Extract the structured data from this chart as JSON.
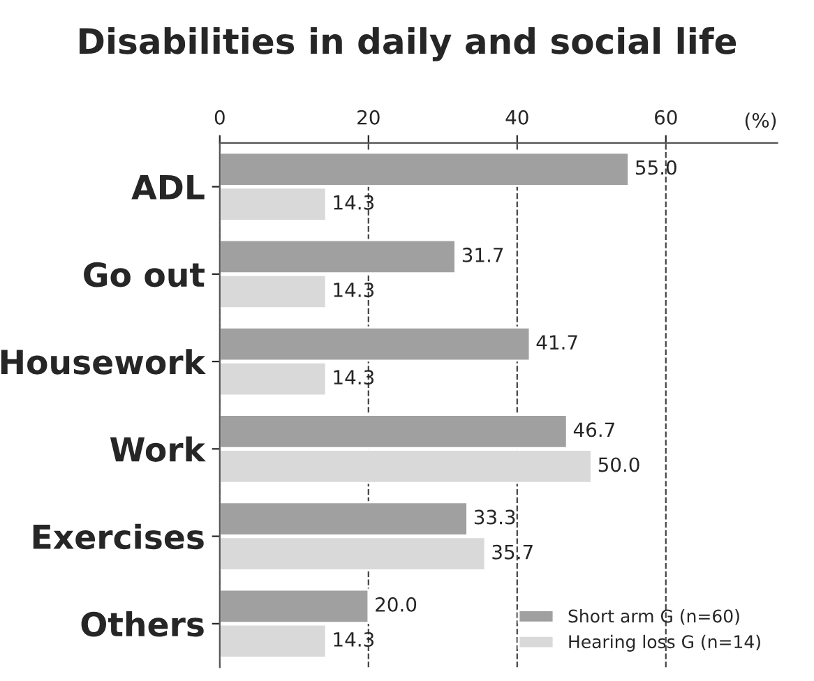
{
  "chart_data": {
    "type": "bar",
    "orientation": "horizontal",
    "title": "Disabilities in daily and social life",
    "xlabel": "(%)",
    "categories": [
      "ADL",
      "Go out",
      "Housework",
      "Work",
      "Exercises",
      "Others"
    ],
    "series": [
      {
        "name": "Short arm G (n=60)",
        "color": "#a0a0a0",
        "values": [
          55.0,
          31.7,
          41.7,
          46.7,
          33.3,
          20.0
        ],
        "value_labels": [
          "55.0",
          "31.7",
          "41.7",
          "46.7",
          "33.3",
          "20.0"
        ]
      },
      {
        "name": "Hearing loss G (n=14)",
        "color": "#d9d9d9",
        "values": [
          14.3,
          14.3,
          14.3,
          50.0,
          35.7,
          14.3
        ],
        "value_labels": [
          "14.3",
          "14.3",
          "14.3",
          "50.0",
          "35.7",
          "14.3"
        ]
      }
    ],
    "xlim": [
      0,
      75
    ],
    "xticks": [
      0,
      20,
      40,
      60
    ],
    "grid": "x",
    "line_style": "dashed",
    "legend": "bottom right"
  }
}
